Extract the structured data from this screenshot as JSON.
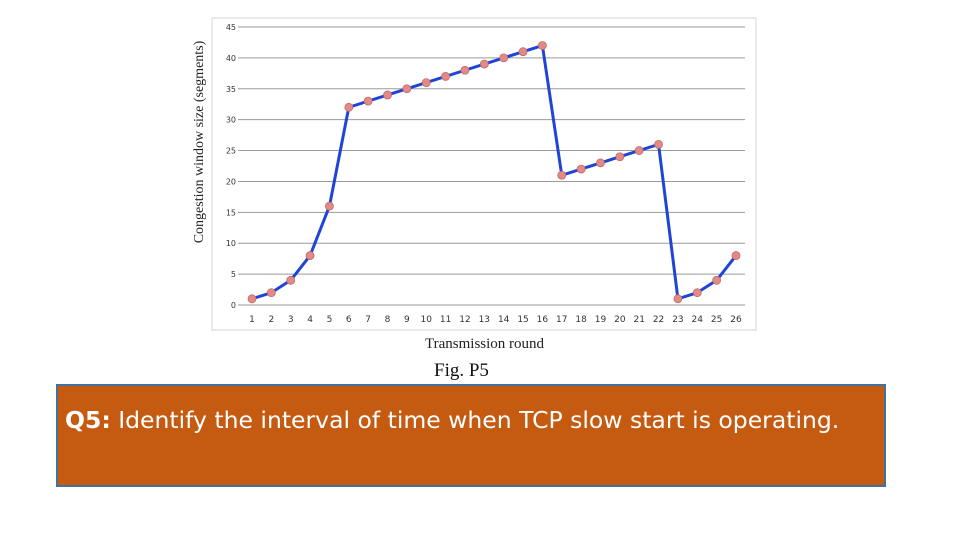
{
  "chart_data": {
    "type": "line",
    "xlabel": "Transmission round",
    "ylabel": "Congestion window size (segments)",
    "caption": "Fig. P5",
    "ylim": [
      0,
      45
    ],
    "yticks": [
      0,
      5,
      10,
      15,
      20,
      25,
      30,
      35,
      40,
      45
    ],
    "x": [
      1,
      2,
      3,
      4,
      5,
      6,
      7,
      8,
      9,
      10,
      11,
      12,
      13,
      14,
      15,
      16,
      17,
      18,
      19,
      20,
      21,
      22,
      23,
      24,
      25,
      26
    ],
    "series": [
      {
        "values": [
          1,
          2,
          4,
          8,
          16,
          32,
          33,
          34,
          35,
          36,
          37,
          38,
          39,
          40,
          41,
          42,
          21,
          22,
          23,
          24,
          25,
          26,
          1,
          2,
          4,
          8
        ]
      }
    ],
    "grid": true,
    "colors": {
      "line": "#1f45d8",
      "marker": "#e38a86",
      "grid": "#9a9a9a"
    }
  },
  "question": {
    "label": "Q5:",
    "text": " Identify the interval of time when TCP slow start is operating.",
    "colors": {
      "box": "#c55a11",
      "border": "#41719c",
      "text": "#ffffff"
    }
  }
}
